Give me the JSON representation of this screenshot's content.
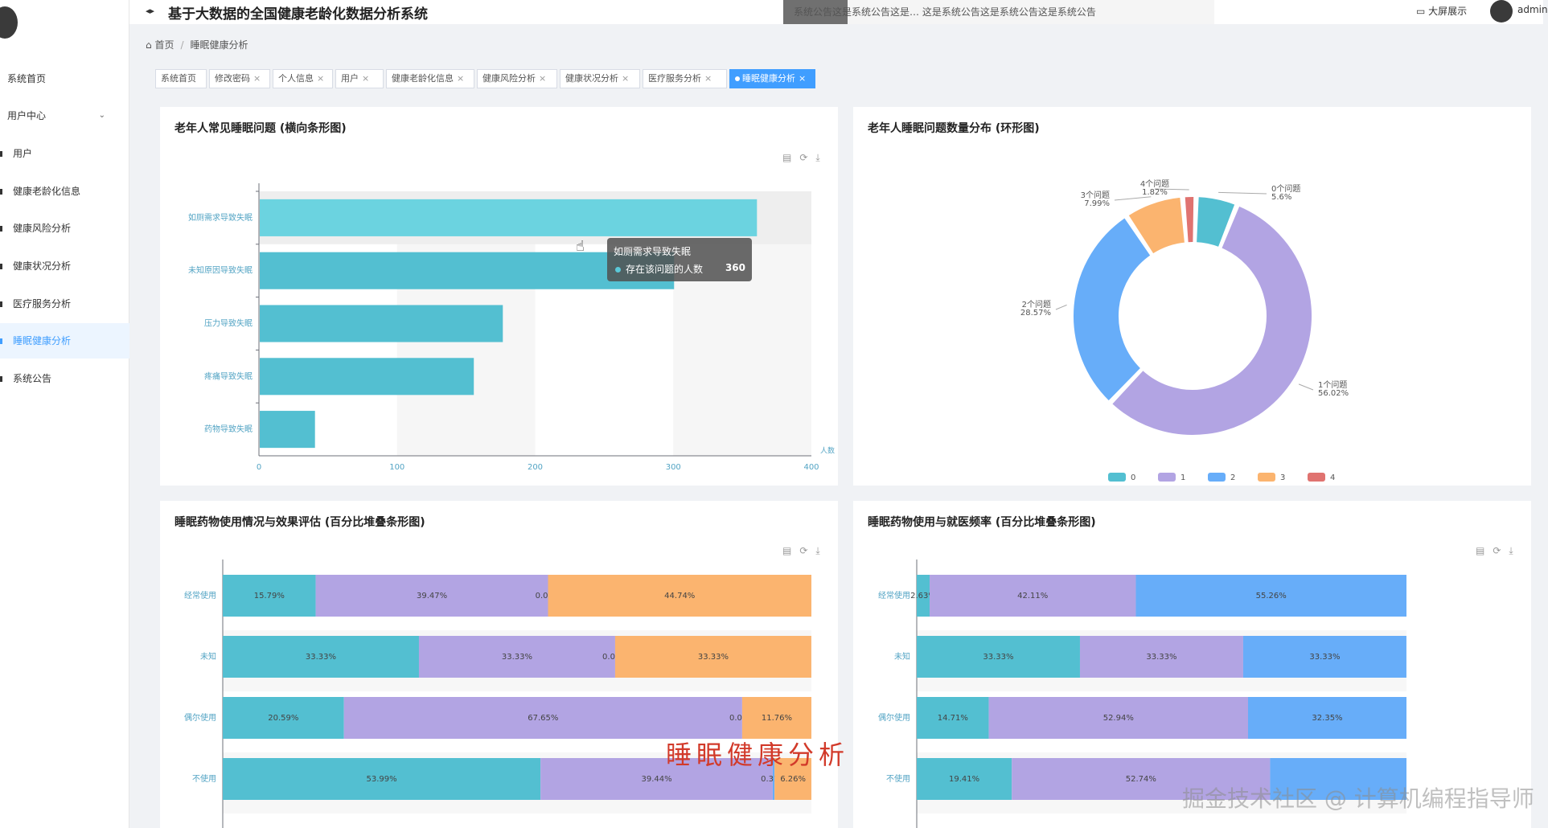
{
  "header": {
    "title": "基于大数据的全国健康老龄化数据分析系统",
    "notice": "系统公告这是系统公告这是…  这是系统公告这是系统公告这是系统公告",
    "bigscreen_label": "大屏展示",
    "username": "admin"
  },
  "sidebar": {
    "items": [
      {
        "label": "系统首页"
      },
      {
        "label": "用户中心",
        "expandable": true
      },
      {
        "label": "用户"
      },
      {
        "label": "健康老龄化信息"
      },
      {
        "label": "健康风险分析"
      },
      {
        "label": "健康状况分析"
      },
      {
        "label": "医疗服务分析"
      },
      {
        "label": "睡眠健康分析",
        "active": true
      },
      {
        "label": "系统公告"
      }
    ]
  },
  "breadcrumb": {
    "home": "首页",
    "current": "睡眠健康分析"
  },
  "tabs": [
    {
      "label": "系统首页",
      "closable": false
    },
    {
      "label": "修改密码",
      "closable": true
    },
    {
      "label": "个人信息",
      "closable": true
    },
    {
      "label": "用户",
      "closable": true
    },
    {
      "label": "健康老龄化信息",
      "closable": true
    },
    {
      "label": "健康风险分析",
      "closable": true
    },
    {
      "label": "健康状况分析",
      "closable": true
    },
    {
      "label": "医疗服务分析",
      "closable": true
    },
    {
      "label": "睡眠健康分析",
      "closable": true,
      "active": true
    }
  ],
  "colors": {
    "teal": "#53bfd1",
    "purple": "#b2a4e3",
    "blue": "#67adf9",
    "orange": "#fbb46f",
    "red": "#e07370",
    "accent": "#409eff"
  },
  "chart_data": [
    {
      "id": "bar",
      "type": "bar",
      "orientation": "horizontal",
      "title": "老年人常见睡眠问题 (横向条形图)",
      "categories": [
        "如厕需求导致失眠",
        "未知原因导致失眠",
        "压力导致失眠",
        "疼痛导致失眠",
        "药物导致失眠"
      ],
      "values": [
        360,
        300,
        176,
        155,
        40
      ],
      "xlabel": "人数",
      "xlim": [
        0,
        400
      ],
      "xticks": [
        "0",
        "100",
        "200",
        "300",
        "400"
      ],
      "tooltip": {
        "category": "如厕需求导致失眠",
        "series": "存在该问题的人数",
        "value": "360"
      }
    },
    {
      "id": "donut",
      "type": "pie",
      "title": "老年人睡眠问题数量分布 (环形图)",
      "legend": [
        "0",
        "1",
        "2",
        "3",
        "4"
      ],
      "legend_position": "bottom",
      "slices": [
        {
          "name": "0个问题",
          "value": 5.6,
          "label": "5.6%"
        },
        {
          "name": "1个问题",
          "value": 56.02,
          "label": "56.02%"
        },
        {
          "name": "2个问题",
          "value": 28.57,
          "label": "28.57%"
        },
        {
          "name": "3个问题",
          "value": 7.99,
          "label": "7.99%"
        },
        {
          "name": "4个问题",
          "value": 1.82,
          "label": "1.82%"
        }
      ]
    },
    {
      "id": "stack1",
      "type": "bar",
      "stacked": true,
      "orientation": "horizontal",
      "title": "睡眠药物使用情况与效果评估 (百分比堆叠条形图)",
      "categories": [
        "经常使用",
        "未知",
        "偶尔使用",
        "不使用"
      ],
      "series": [
        {
          "values": [
            15.79,
            33.33,
            20.59,
            53.99
          ],
          "labels": [
            "15.79%",
            "33.33%",
            "20.59%",
            "53.99%"
          ]
        },
        {
          "values": [
            39.47,
            33.33,
            67.65,
            39.44
          ],
          "labels": [
            "39.47%",
            "33.33%",
            "67.65%",
            "39.44%"
          ]
        },
        {
          "values": [
            0,
            0,
            0,
            0.31
          ],
          "labels": [
            "0.00%",
            "0.00%",
            "0.00%",
            "0.31%"
          ]
        },
        {
          "values": [
            44.74,
            33.33,
            11.76,
            6.26
          ],
          "labels": [
            "44.74%",
            "33.33%",
            "11.76%",
            "6.26%"
          ]
        }
      ]
    },
    {
      "id": "stack2",
      "type": "bar",
      "stacked": true,
      "orientation": "horizontal",
      "title": "睡眠药物使用与就医频率 (百分比堆叠条形图)",
      "categories": [
        "经常使用",
        "未知",
        "偶尔使用",
        "不使用"
      ],
      "series": [
        {
          "values": [
            2.63,
            33.33,
            14.71,
            19.41
          ],
          "labels": [
            "2.63%",
            "33.33%",
            "14.71%",
            "19.41%"
          ]
        },
        {
          "values": [
            42.11,
            33.33,
            52.94,
            52.74
          ],
          "labels": [
            "42.11%",
            "33.33%",
            "52.94%",
            "52.74%"
          ]
        },
        {
          "values": [
            55.26,
            33.33,
            32.35,
            27.85
          ],
          "labels": [
            "55.26%",
            "33.33%",
            "32.35%",
            ""
          ]
        }
      ]
    }
  ],
  "overlay": {
    "watermark": "睡眠健康分析",
    "credit": "掘金技术社区 @ 计算机编程指导师"
  }
}
